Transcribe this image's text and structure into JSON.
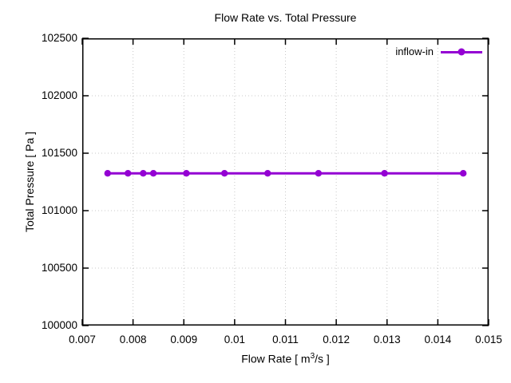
{
  "chart_data": {
    "type": "line",
    "title": "Flow Rate vs. Total Pressure",
    "xlabel": "Flow Rate [ m^3/s ]",
    "xlabel_parts": {
      "prefix": "Flow Rate [ m",
      "sup": "3",
      "suffix": "/s ]"
    },
    "ylabel": "Total Pressure [ Pa ]",
    "xlim": [
      0.007,
      0.015
    ],
    "ylim": [
      100000,
      102500
    ],
    "x_tick_values": [
      0.007,
      0.008,
      0.009,
      0.01,
      0.011,
      0.012,
      0.013,
      0.014,
      0.015
    ],
    "x_tick_labels": [
      "0.007",
      "0.008",
      "0.009",
      "0.01",
      "0.011",
      "0.012",
      "0.013",
      "0.014",
      "0.015"
    ],
    "y_tick_values": [
      100000,
      100500,
      101000,
      101500,
      102000,
      102500
    ],
    "y_tick_labels": [
      "100000",
      "100500",
      "101000",
      "101500",
      "102000",
      "102500"
    ],
    "grid": true,
    "grid_style": "dotted",
    "legend_position": "top-right",
    "series": [
      {
        "name": "inflow-in",
        "color": "#9400d3",
        "marker": "filled-circle",
        "x": [
          0.0075,
          0.0079,
          0.0082,
          0.0084,
          0.00905,
          0.0098,
          0.01065,
          0.01165,
          0.01295,
          0.0145
        ],
        "y": [
          101325,
          101325,
          101325,
          101325,
          101325,
          101325,
          101325,
          101325,
          101325,
          101325
        ]
      }
    ],
    "colors": {
      "background": "#ffffff",
      "border": "#000000",
      "grid": "#c8c8c8",
      "text": "#000000"
    }
  }
}
